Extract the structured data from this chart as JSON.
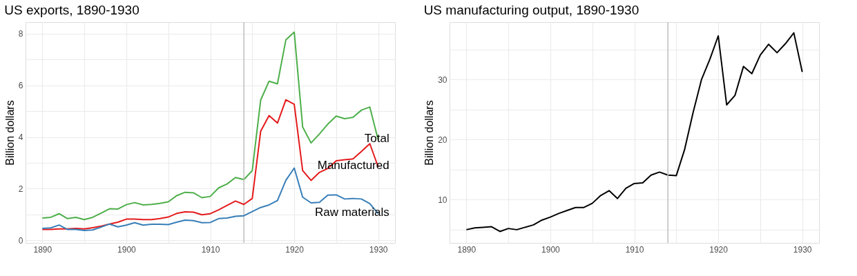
{
  "chart_data": [
    {
      "type": "line",
      "title": "US exports, 1890-1930",
      "ylabel": "Billion dollars",
      "x": [
        1890,
        1891,
        1892,
        1893,
        1894,
        1895,
        1896,
        1897,
        1898,
        1899,
        1900,
        1901,
        1902,
        1903,
        1904,
        1905,
        1906,
        1907,
        1908,
        1909,
        1910,
        1911,
        1912,
        1913,
        1914,
        1915,
        1916,
        1917,
        1918,
        1919,
        1920,
        1921,
        1922,
        1923,
        1924,
        1925,
        1926,
        1927,
        1928,
        1929,
        1930
      ],
      "series": [
        {
          "name": "Total",
          "color": "#4daf4a",
          "values": [
            0.86,
            0.89,
            1.03,
            0.84,
            0.89,
            0.8,
            0.89,
            1.05,
            1.22,
            1.21,
            1.38,
            1.46,
            1.37,
            1.39,
            1.43,
            1.49,
            1.73,
            1.86,
            1.84,
            1.65,
            1.7,
            2.03,
            2.18,
            2.43,
            2.35,
            2.7,
            5.43,
            6.16,
            6.06,
            7.76,
            8.06,
            4.39,
            3.77,
            4.12,
            4.5,
            4.81,
            4.71,
            4.76,
            5.04,
            5.16,
            3.88
          ]
        },
        {
          "name": "Manufactured",
          "color": "#e41a1c",
          "values": [
            0.42,
            0.42,
            0.44,
            0.44,
            0.46,
            0.44,
            0.49,
            0.55,
            0.63,
            0.7,
            0.82,
            0.82,
            0.8,
            0.8,
            0.84,
            0.9,
            1.04,
            1.1,
            1.09,
            0.99,
            1.03,
            1.18,
            1.35,
            1.52,
            1.39,
            1.62,
            4.22,
            4.83,
            4.54,
            5.44,
            5.27,
            2.7,
            2.32,
            2.63,
            2.78,
            3.08,
            3.12,
            3.15,
            3.44,
            3.74,
            2.84
          ]
        },
        {
          "name": "Raw materials",
          "color": "#377eb8",
          "values": [
            0.46,
            0.48,
            0.59,
            0.42,
            0.42,
            0.38,
            0.4,
            0.51,
            0.63,
            0.52,
            0.59,
            0.68,
            0.59,
            0.62,
            0.62,
            0.61,
            0.7,
            0.78,
            0.76,
            0.68,
            0.69,
            0.84,
            0.86,
            0.93,
            0.95,
            1.11,
            1.27,
            1.37,
            1.54,
            2.32,
            2.8,
            1.67,
            1.45,
            1.47,
            1.75,
            1.76,
            1.6,
            1.62,
            1.6,
            1.42,
            1.03
          ]
        }
      ],
      "xlim": [
        1888,
        1932
      ],
      "ylim": [
        -0.1,
        8.45
      ],
      "xticks": [
        1890,
        {
          "value": 1895,
          "label": null
        },
        1900,
        {
          "value": 1905,
          "label": null
        },
        1910,
        {
          "value": 1915,
          "label": null
        },
        1920,
        {
          "value": 1925,
          "label": null
        },
        1930
      ],
      "yticks": [
        0,
        {
          "value": 1,
          "label": null
        },
        2,
        {
          "value": 3,
          "label": null
        },
        4,
        {
          "value": 5,
          "label": null
        },
        6,
        {
          "value": 7,
          "label": null
        },
        8
      ],
      "ref_lines": [
        {
          "axis": "x",
          "value": 1914,
          "color": "#bebebe"
        }
      ],
      "grid": true
    },
    {
      "type": "line",
      "title": "US manufacturing output, 1890-1930",
      "ylabel": "Billion dollars",
      "x": [
        1890,
        1891,
        1892,
        1893,
        1894,
        1895,
        1896,
        1897,
        1898,
        1899,
        1900,
        1901,
        1902,
        1903,
        1904,
        1905,
        1906,
        1907,
        1908,
        1909,
        1910,
        1911,
        1912,
        1913,
        1914,
        1915,
        1916,
        1917,
        1918,
        1919,
        1920,
        1921,
        1922,
        1923,
        1924,
        1925,
        1926,
        1927,
        1928,
        1929,
        1930
      ],
      "series": [
        {
          "color": "#000000",
          "values": [
            5.0,
            5.3,
            5.4,
            5.5,
            4.7,
            5.2,
            5.0,
            5.4,
            5.8,
            6.6,
            7.1,
            7.7,
            8.2,
            8.7,
            8.7,
            9.4,
            10.7,
            11.5,
            10.2,
            11.9,
            12.7,
            12.8,
            14.1,
            14.6,
            14.1,
            14.0,
            18.4,
            24.5,
            30.0,
            33.4,
            37.3,
            25.8,
            27.4,
            32.2,
            31.0,
            34.1,
            35.9,
            34.5,
            36.0,
            37.8,
            31.3
          ]
        }
      ],
      "xlim": [
        1888,
        1932
      ],
      "ylim": [
        2.8,
        39.6
      ],
      "xticks": [
        1890,
        {
          "value": 1895,
          "label": null
        },
        1900,
        {
          "value": 1905,
          "label": null
        },
        1910,
        {
          "value": 1915,
          "label": null
        },
        1920,
        {
          "value": 1925,
          "label": null
        },
        1930
      ],
      "yticks": [
        {
          "value": 5,
          "label": null
        },
        10,
        {
          "value": 15,
          "label": null
        },
        20,
        {
          "value": 25,
          "label": null
        },
        30,
        {
          "value": 35,
          "label": null
        }
      ],
      "ref_lines": [
        {
          "axis": "x",
          "value": 1914,
          "color": "#bebebe"
        }
      ],
      "grid": true
    }
  ]
}
